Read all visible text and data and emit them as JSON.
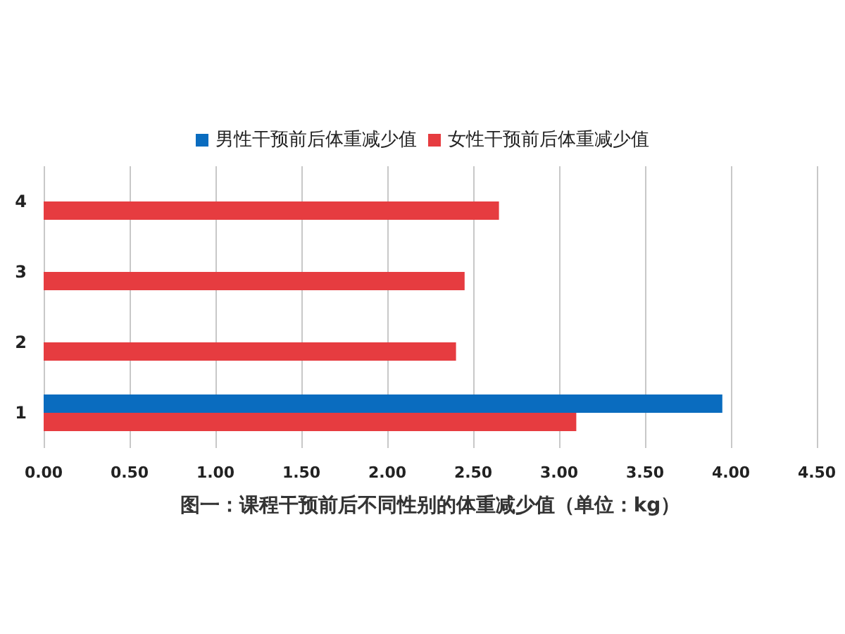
{
  "chart_data": {
    "type": "bar",
    "orientation": "horizontal",
    "categories": [
      "4",
      "3",
      "2",
      "1"
    ],
    "series": [
      {
        "name": "男性干预前后体重减少值",
        "color": "#0a6cbf",
        "values": [
          null,
          null,
          null,
          3.95
        ]
      },
      {
        "name": "女性干预前后体重减少值",
        "color": "#e63c40",
        "values": [
          2.65,
          2.45,
          2.4,
          3.1
        ]
      }
    ],
    "xlabel": "图一：课程干预前后不同性别的体重减少值（单位：kg）",
    "xlim": [
      0,
      4.5
    ],
    "xticks": [
      {
        "value": 0,
        "label": "0.00"
      },
      {
        "value": 0.5,
        "label": "0.50"
      },
      {
        "value": 1,
        "label": "1.00"
      },
      {
        "value": 1.5,
        "label": "1.50"
      },
      {
        "value": 2,
        "label": "2.00"
      },
      {
        "value": 2.5,
        "label": "2.50"
      },
      {
        "value": 3,
        "label": "3.00"
      },
      {
        "value": 3.5,
        "label": "3.50"
      },
      {
        "value": 4,
        "label": "4.00"
      },
      {
        "value": 4.5,
        "label": "4.50"
      }
    ],
    "grid": "x",
    "legend": "top"
  }
}
